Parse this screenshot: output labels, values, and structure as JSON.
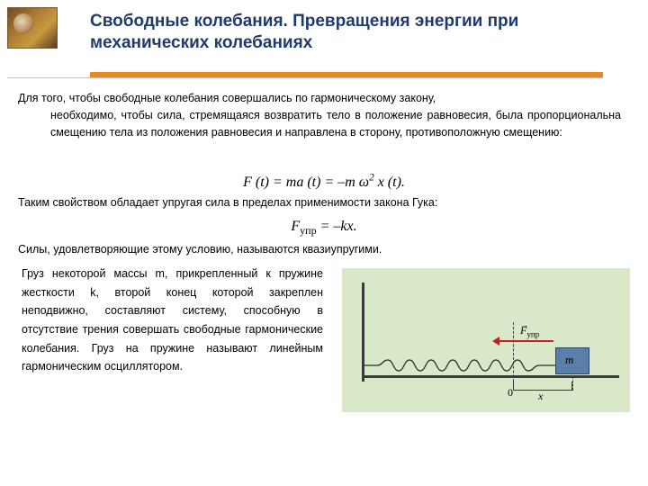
{
  "title": "Свободные колебания. Превращения энергии при механических колебаниях",
  "para1_line1": "Для того, чтобы свободные колебания совершались по гармоническому закону,",
  "para1_rest": "необходимо, чтобы сила, стремящаяся возвратить тело в положение равновесия, была пропорциональна смещению тела из положения равновесия и направлена в сторону, противоположную смещению:",
  "eq1_html": "F (t) = ma (t) = –m ω<sup>2</sup> x (t).",
  "para2": "Таким свойством обладает упругая сила в пределах применимости закона Гука:",
  "eq2_F": "F",
  "eq2_sub": "упр",
  "eq2_tail": " = –kx.",
  "para3": "Силы, удовлетворяющие этому условию, называются квазиупругими.",
  "para4": "Груз некоторой массы m, прикрепленный к пружине жесткости k, второй конец которой закреплен неподвижно, составляют систему, способную в отсутствие трения совершать свободные гармонические колебания. Груз на пружине называют линейным гармоническим осциллятором.",
  "fig": {
    "mass_label": "m",
    "origin_label": "0",
    "x_label": "x",
    "force_label_F": "F",
    "force_label_sub": "упр",
    "colors": {
      "bg": "#d8e8c8",
      "mass_fill": "#5a7fa8",
      "mass_border": "#2a4a6a",
      "line": "#3a3a3a",
      "arrow": "#c02020",
      "spring": "#2a2a2a"
    }
  },
  "accent_color": "#e68a1f",
  "title_color": "#1f3a6b"
}
